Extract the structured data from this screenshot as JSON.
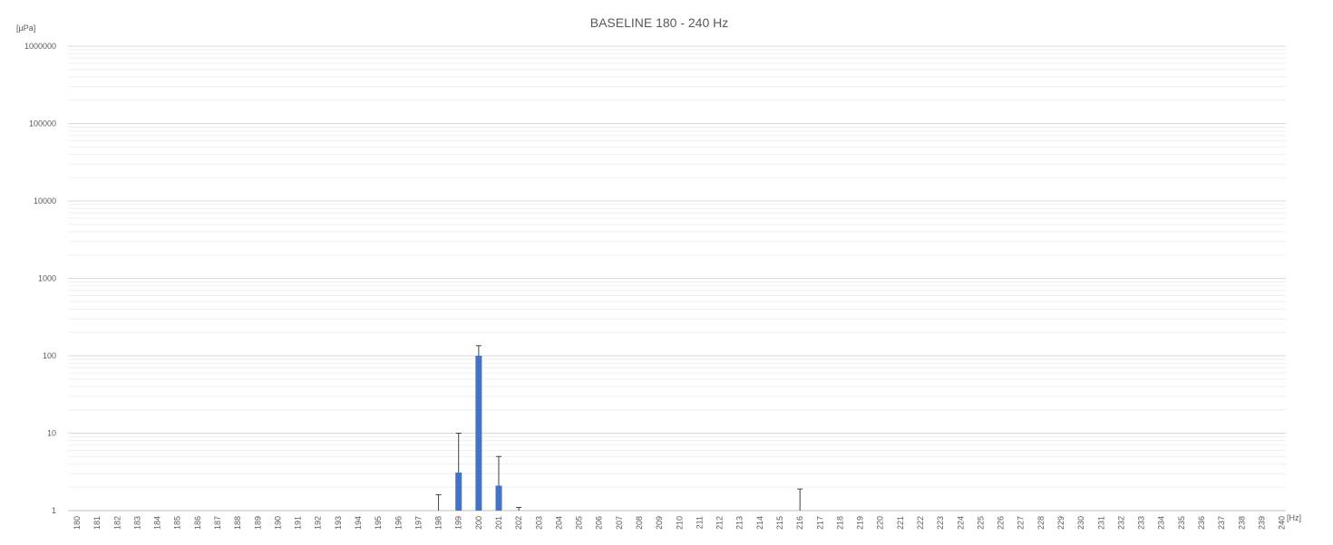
{
  "chart_data": {
    "type": "bar",
    "title": "BASELINE 180 - 240 Hz",
    "ylabel": "[µPa]",
    "xlabel": "[Hz]",
    "yscale": "log",
    "ylim": [
      1,
      1000000
    ],
    "yticks": [
      "1",
      "10",
      "100",
      "1000",
      "10000",
      "100000",
      "1000000"
    ],
    "grid": true,
    "legend": "none",
    "categories": [
      "180",
      "181",
      "182",
      "183",
      "184",
      "185",
      "186",
      "187",
      "188",
      "189",
      "190",
      "191",
      "192",
      "193",
      "194",
      "195",
      "196",
      "197",
      "198",
      "199",
      "200",
      "201",
      "202",
      "203",
      "204",
      "205",
      "206",
      "207",
      "208",
      "209",
      "210",
      "211",
      "212",
      "213",
      "214",
      "215",
      "216",
      "217",
      "218",
      "219",
      "220",
      "221",
      "222",
      "223",
      "224",
      "225",
      "226",
      "227",
      "228",
      "229",
      "230",
      "231",
      "232",
      "233",
      "234",
      "235",
      "236",
      "237",
      "238",
      "239",
      "240"
    ],
    "series": [
      {
        "values": [
          1,
          1,
          1,
          1,
          1,
          1,
          1,
          1,
          1,
          1,
          1,
          1,
          1,
          1,
          1,
          1,
          1,
          1,
          1,
          3.1,
          100,
          2.1,
          1,
          1,
          1,
          1,
          1,
          1,
          1,
          1,
          1,
          1,
          1,
          1,
          1,
          1,
          1,
          1,
          1,
          1,
          1,
          1,
          1,
          1,
          1,
          1,
          1,
          1,
          1,
          1,
          1,
          1,
          1,
          1,
          1,
          1,
          1,
          1,
          1,
          1,
          1
        ],
        "error_upper": [
          null,
          null,
          null,
          null,
          null,
          null,
          null,
          null,
          null,
          null,
          null,
          null,
          null,
          null,
          null,
          null,
          null,
          null,
          1.6,
          10,
          135,
          5,
          1.1,
          null,
          null,
          null,
          null,
          null,
          null,
          null,
          null,
          null,
          null,
          null,
          null,
          null,
          1.9,
          null,
          null,
          null,
          null,
          null,
          null,
          null,
          null,
          null,
          null,
          null,
          null,
          null,
          null,
          null,
          null,
          null,
          null,
          null,
          null,
          null,
          null,
          null,
          null
        ]
      }
    ],
    "colors": {
      "bar": "#4472c4",
      "error_bar": "#404040",
      "major_grid": "#d9d9d9",
      "minor_grid": "#efefef",
      "text": "#595959"
    }
  }
}
